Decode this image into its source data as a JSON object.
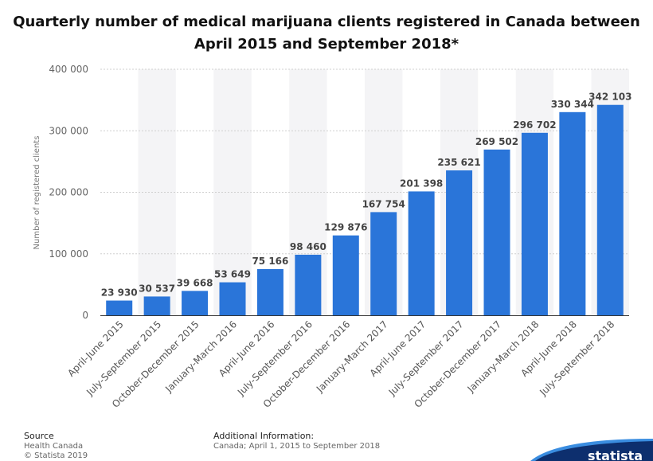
{
  "chart_data": {
    "type": "bar",
    "title": "Quarterly number of medical marijuana clients registered in Canada between April 2015 and September 2018*",
    "xlabel": "",
    "ylabel": "Number of registered clients",
    "ylim": [
      0,
      400000
    ],
    "yticks": [
      0,
      100000,
      200000,
      300000,
      400000
    ],
    "ytick_labels": [
      "0",
      "100 000",
      "200 000",
      "300 000",
      "400 000"
    ],
    "grid": true,
    "bar_color": "#2a75d9",
    "categories": [
      "April-June 2015",
      "July-September 2015",
      "October-December 2015",
      "January-March 2016",
      "April-June 2016",
      "July-September 2016",
      "October-December 2016",
      "January-March 2017",
      "April-June 2017",
      "July-September 2017",
      "October-December 2017",
      "January-March 2018",
      "April-June 2018",
      "July-September 2018"
    ],
    "values": [
      23930,
      30537,
      39668,
      53649,
      75166,
      98460,
      129876,
      167754,
      201398,
      235621,
      269502,
      296702,
      330344,
      342103
    ],
    "value_labels": [
      "23 930",
      "30 537",
      "39 668",
      "53 649",
      "75 166",
      "98 460",
      "129 876",
      "167 754",
      "201 398",
      "235 621",
      "269 502",
      "296 702",
      "330 344",
      "342 103"
    ]
  },
  "footer": {
    "source_label": "Source",
    "source_lines": [
      "Health Canada",
      "© Statista 2019"
    ],
    "additional_label": "Additional Information:",
    "additional_text": "Canada; April 1, 2015 to September 2018"
  },
  "logo": {
    "text": "statista",
    "color": "#0d2f6e"
  }
}
